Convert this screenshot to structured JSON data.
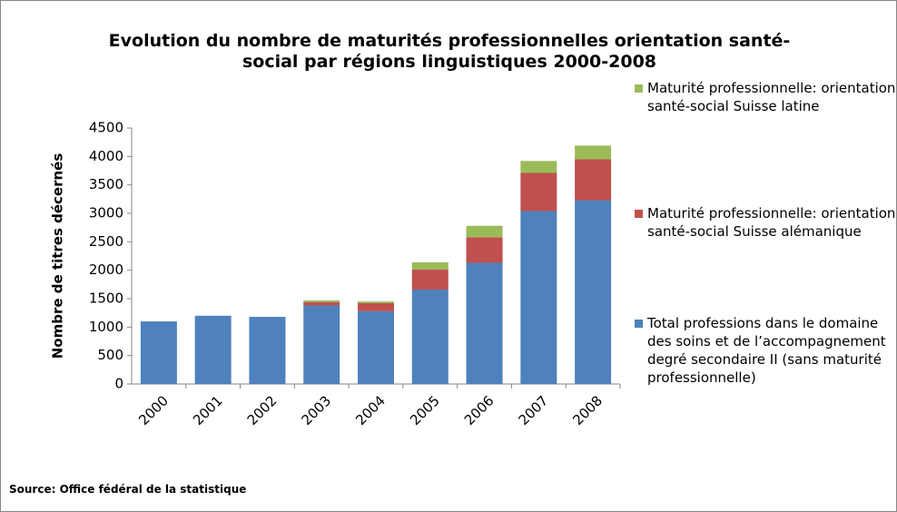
{
  "chart_data": {
    "type": "stacked_bar",
    "title": "Evolution du nombre de maturités professionnelles orientation santé-social par régions linguistiques 2000-2008",
    "y_label": "Nombre de titres décernés",
    "source": "Source: Office fédéral de la statistique",
    "categories": [
      "2000",
      "2001",
      "2002",
      "2003",
      "2004",
      "2005",
      "2006",
      "2007",
      "2008"
    ],
    "series": [
      {
        "name": "Total professions dans le domaine des soins et de l’accompagnement degré secondaire II (sans maturité professionnelle)",
        "color": "#4f81bd",
        "values": [
          1100,
          1200,
          1180,
          1380,
          1280,
          1660,
          2130,
          3040,
          3230
        ]
      },
      {
        "name": "Maturité professionnelle: orientation santé-social Suisse alémanique",
        "color": "#c0504d",
        "values": [
          0,
          0,
          0,
          60,
          140,
          350,
          450,
          670,
          720
        ]
      },
      {
        "name": "Maturité professionnelle: orientation santé-social Suisse latine",
        "color": "#9bbb59",
        "values": [
          0,
          0,
          0,
          30,
          30,
          130,
          200,
          210,
          240
        ]
      }
    ],
    "ylim": [
      0,
      4500
    ],
    "yticks": [
      0,
      500,
      1000,
      1500,
      2000,
      2500,
      3000,
      3500,
      4000,
      4500
    ],
    "legend": "right"
  }
}
